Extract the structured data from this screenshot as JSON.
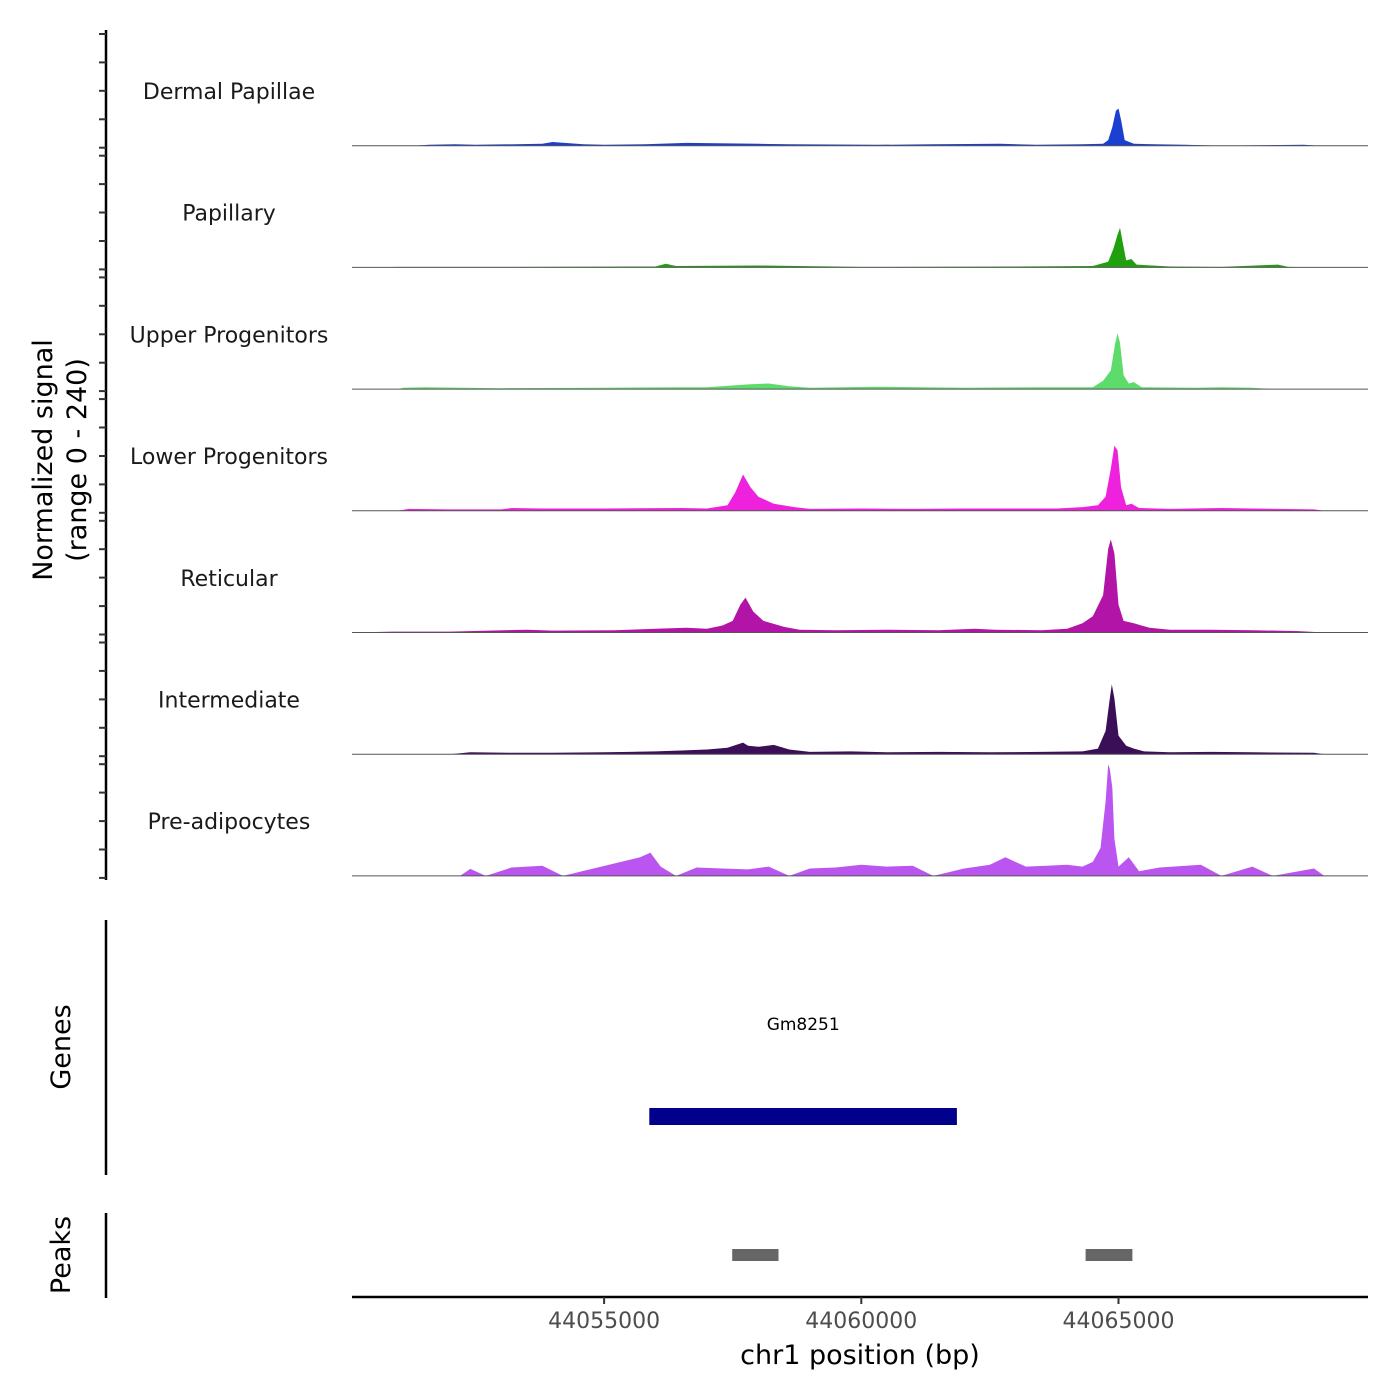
{
  "chart_data": {
    "type": "area",
    "x_unit": "bp",
    "xlim": [
      44050100,
      44069850
    ],
    "xlabel": "chr1 position (bp)",
    "x_ticks": [
      44055000,
      44060000,
      44065000
    ],
    "x_tick_labels": [
      "44055000",
      "44060000",
      "44065000"
    ],
    "ylabel_line1": "Normalized signal",
    "ylabel_line2": "(range 0 - 240)",
    "ylim": [
      0,
      240
    ],
    "tracks": [
      {
        "name": "Dermal Papillae",
        "color": "#1a3fd1",
        "points": [
          [
            44051300,
            0
          ],
          [
            44051600,
            2
          ],
          [
            44052100,
            3
          ],
          [
            44052500,
            2
          ],
          [
            44053800,
            4
          ],
          [
            44054000,
            8
          ],
          [
            44054600,
            3
          ],
          [
            44055000,
            2
          ],
          [
            44055800,
            3
          ],
          [
            44056600,
            6
          ],
          [
            44057400,
            5
          ],
          [
            44058000,
            4
          ],
          [
            44058600,
            3
          ],
          [
            44060300,
            2
          ],
          [
            44061400,
            3
          ],
          [
            44062700,
            4
          ],
          [
            44063400,
            2
          ],
          [
            44064300,
            3
          ],
          [
            44064700,
            4
          ],
          [
            44064800,
            12
          ],
          [
            44064880,
            40
          ],
          [
            44064950,
            75
          ],
          [
            44065000,
            80
          ],
          [
            44065050,
            55
          ],
          [
            44065120,
            12
          ],
          [
            44065300,
            4
          ],
          [
            44065700,
            3
          ],
          [
            44066300,
            2
          ],
          [
            44067000,
            0
          ],
          [
            44068600,
            2
          ],
          [
            44068900,
            0
          ]
        ]
      },
      {
        "name": "Papillary",
        "color": "#21a00f",
        "points": [
          [
            44050100,
            0
          ],
          [
            44051000,
            1
          ],
          [
            44053000,
            1
          ],
          [
            44056000,
            2
          ],
          [
            44056200,
            8
          ],
          [
            44056400,
            3
          ],
          [
            44058000,
            4
          ],
          [
            44060000,
            1
          ],
          [
            44063000,
            2
          ],
          [
            44064500,
            3
          ],
          [
            44064800,
            12
          ],
          [
            44064900,
            40
          ],
          [
            44064980,
            70
          ],
          [
            44065030,
            85
          ],
          [
            44065080,
            55
          ],
          [
            44065150,
            15
          ],
          [
            44065250,
            18
          ],
          [
            44065350,
            6
          ],
          [
            44066000,
            2
          ],
          [
            44067000,
            1
          ],
          [
            44068100,
            6
          ],
          [
            44068300,
            1
          ],
          [
            44069000,
            0
          ]
        ]
      },
      {
        "name": "Upper Progenitors",
        "color": "#5edc6b",
        "points": [
          [
            44051000,
            0
          ],
          [
            44051100,
            3
          ],
          [
            44051500,
            4
          ],
          [
            44053000,
            2
          ],
          [
            44055000,
            3
          ],
          [
            44056500,
            4
          ],
          [
            44057000,
            4
          ],
          [
            44057800,
            10
          ],
          [
            44058200,
            12
          ],
          [
            44058600,
            6
          ],
          [
            44059000,
            3
          ],
          [
            44060300,
            5
          ],
          [
            44062000,
            3
          ],
          [
            44063500,
            4
          ],
          [
            44064500,
            4
          ],
          [
            44064700,
            18
          ],
          [
            44064850,
            40
          ],
          [
            44064930,
            95
          ],
          [
            44064980,
            120
          ],
          [
            44065030,
            100
          ],
          [
            44065100,
            30
          ],
          [
            44065200,
            12
          ],
          [
            44065300,
            15
          ],
          [
            44065450,
            4
          ],
          [
            44066500,
            3
          ],
          [
            44067000,
            4
          ],
          [
            44067600,
            3
          ],
          [
            44068000,
            0
          ]
        ]
      },
      {
        "name": "Lower Progenitors",
        "color": "#ee22dd",
        "points": [
          [
            44051000,
            0
          ],
          [
            44051200,
            4
          ],
          [
            44052000,
            3
          ],
          [
            44053000,
            3
          ],
          [
            44053200,
            6
          ],
          [
            44053800,
            5
          ],
          [
            44055000,
            5
          ],
          [
            44056500,
            6
          ],
          [
            44057000,
            5
          ],
          [
            44057400,
            12
          ],
          [
            44057550,
            40
          ],
          [
            44057700,
            78
          ],
          [
            44057850,
            50
          ],
          [
            44058000,
            30
          ],
          [
            44058300,
            15
          ],
          [
            44058700,
            8
          ],
          [
            44059000,
            4
          ],
          [
            44060000,
            5
          ],
          [
            44061000,
            4
          ],
          [
            44062000,
            5
          ],
          [
            44063800,
            5
          ],
          [
            44064300,
            8
          ],
          [
            44064600,
            12
          ],
          [
            44064750,
            30
          ],
          [
            44064850,
            90
          ],
          [
            44064920,
            140
          ],
          [
            44064980,
            130
          ],
          [
            44065050,
            50
          ],
          [
            44065150,
            12
          ],
          [
            44065250,
            15
          ],
          [
            44065400,
            6
          ],
          [
            44066000,
            4
          ],
          [
            44067000,
            6
          ],
          [
            44067600,
            5
          ],
          [
            44068800,
            3
          ],
          [
            44069000,
            0
          ]
        ]
      },
      {
        "name": "Reticular",
        "color": "#b314a8",
        "points": [
          [
            44050100,
            0
          ],
          [
            44050900,
            2
          ],
          [
            44052000,
            2
          ],
          [
            44053500,
            6
          ],
          [
            44054000,
            4
          ],
          [
            44055200,
            5
          ],
          [
            44056000,
            8
          ],
          [
            44056600,
            10
          ],
          [
            44057000,
            8
          ],
          [
            44057300,
            15
          ],
          [
            44057500,
            25
          ],
          [
            44057650,
            60
          ],
          [
            44057750,
            75
          ],
          [
            44057900,
            45
          ],
          [
            44058100,
            25
          ],
          [
            44058500,
            12
          ],
          [
            44058800,
            6
          ],
          [
            44059500,
            5
          ],
          [
            44060500,
            6
          ],
          [
            44061500,
            5
          ],
          [
            44062200,
            8
          ],
          [
            44062600,
            6
          ],
          [
            44063500,
            5
          ],
          [
            44064000,
            8
          ],
          [
            44064300,
            20
          ],
          [
            44064500,
            35
          ],
          [
            44064700,
            80
          ],
          [
            44064800,
            180
          ],
          [
            44064850,
            200
          ],
          [
            44064920,
            170
          ],
          [
            44065000,
            60
          ],
          [
            44065100,
            25
          ],
          [
            44065300,
            20
          ],
          [
            44065600,
            10
          ],
          [
            44066000,
            6
          ],
          [
            44066800,
            6
          ],
          [
            44067600,
            5
          ],
          [
            44068500,
            3
          ],
          [
            44069000,
            0
          ]
        ]
      },
      {
        "name": "Intermediate",
        "color": "#3b0f58",
        "points": [
          [
            44052000,
            0
          ],
          [
            44052400,
            4
          ],
          [
            44053300,
            3
          ],
          [
            44054000,
            3
          ],
          [
            44055000,
            4
          ],
          [
            44055500,
            5
          ],
          [
            44056000,
            6
          ],
          [
            44056500,
            8
          ],
          [
            44057000,
            10
          ],
          [
            44057400,
            14
          ],
          [
            44057700,
            25
          ],
          [
            44057800,
            18
          ],
          [
            44058000,
            16
          ],
          [
            44058300,
            20
          ],
          [
            44058600,
            10
          ],
          [
            44059000,
            5
          ],
          [
            44059800,
            6
          ],
          [
            44060500,
            4
          ],
          [
            44061500,
            5
          ],
          [
            44062500,
            4
          ],
          [
            44063500,
            5
          ],
          [
            44064300,
            6
          ],
          [
            44064600,
            12
          ],
          [
            44064750,
            50
          ],
          [
            44064820,
            110
          ],
          [
            44064870,
            150
          ],
          [
            44064920,
            120
          ],
          [
            44065000,
            40
          ],
          [
            44065150,
            18
          ],
          [
            44065300,
            12
          ],
          [
            44065500,
            6
          ],
          [
            44066000,
            4
          ],
          [
            44066800,
            5
          ],
          [
            44067600,
            4
          ],
          [
            44068800,
            3
          ],
          [
            44069000,
            0
          ]
        ]
      },
      {
        "name": "Pre-adipocytes",
        "color": "#bb55f0",
        "points": [
          [
            44052200,
            0
          ],
          [
            44052400,
            15
          ],
          [
            44052700,
            0
          ],
          [
            44053200,
            18
          ],
          [
            44053800,
            22
          ],
          [
            44054200,
            0
          ],
          [
            44055700,
            40
          ],
          [
            44055900,
            50
          ],
          [
            44056100,
            20
          ],
          [
            44056400,
            0
          ],
          [
            44056800,
            18
          ],
          [
            44057300,
            16
          ],
          [
            44057800,
            14
          ],
          [
            44058200,
            20
          ],
          [
            44058600,
            0
          ],
          [
            44059000,
            16
          ],
          [
            44059500,
            18
          ],
          [
            44060000,
            24
          ],
          [
            44060500,
            20
          ],
          [
            44061000,
            22
          ],
          [
            44061400,
            0
          ],
          [
            44062000,
            16
          ],
          [
            44062500,
            24
          ],
          [
            44062800,
            40
          ],
          [
            44063200,
            20
          ],
          [
            44063600,
            22
          ],
          [
            44064000,
            24
          ],
          [
            44064300,
            20
          ],
          [
            44064500,
            30
          ],
          [
            44064650,
            60
          ],
          [
            44064750,
            160
          ],
          [
            44064800,
            240
          ],
          [
            44064830,
            230
          ],
          [
            44064880,
            190
          ],
          [
            44064920,
            80
          ],
          [
            44065000,
            20
          ],
          [
            44065200,
            40
          ],
          [
            44065400,
            10
          ],
          [
            44065800,
            18
          ],
          [
            44066600,
            24
          ],
          [
            44067000,
            0
          ],
          [
            44067600,
            20
          ],
          [
            44068000,
            0
          ],
          [
            44068800,
            16
          ],
          [
            44069000,
            0
          ]
        ]
      }
    ],
    "genes_label": "Genes",
    "genes": [
      {
        "name": "Gm8251",
        "start": 44055880,
        "end": 44061860,
        "color": "#00008b"
      }
    ],
    "peaks_label": "Peaks",
    "peaks": [
      {
        "start": 44057490,
        "end": 44058390,
        "color": "#666666"
      },
      {
        "start": 44064360,
        "end": 44065270,
        "color": "#666666"
      }
    ]
  }
}
